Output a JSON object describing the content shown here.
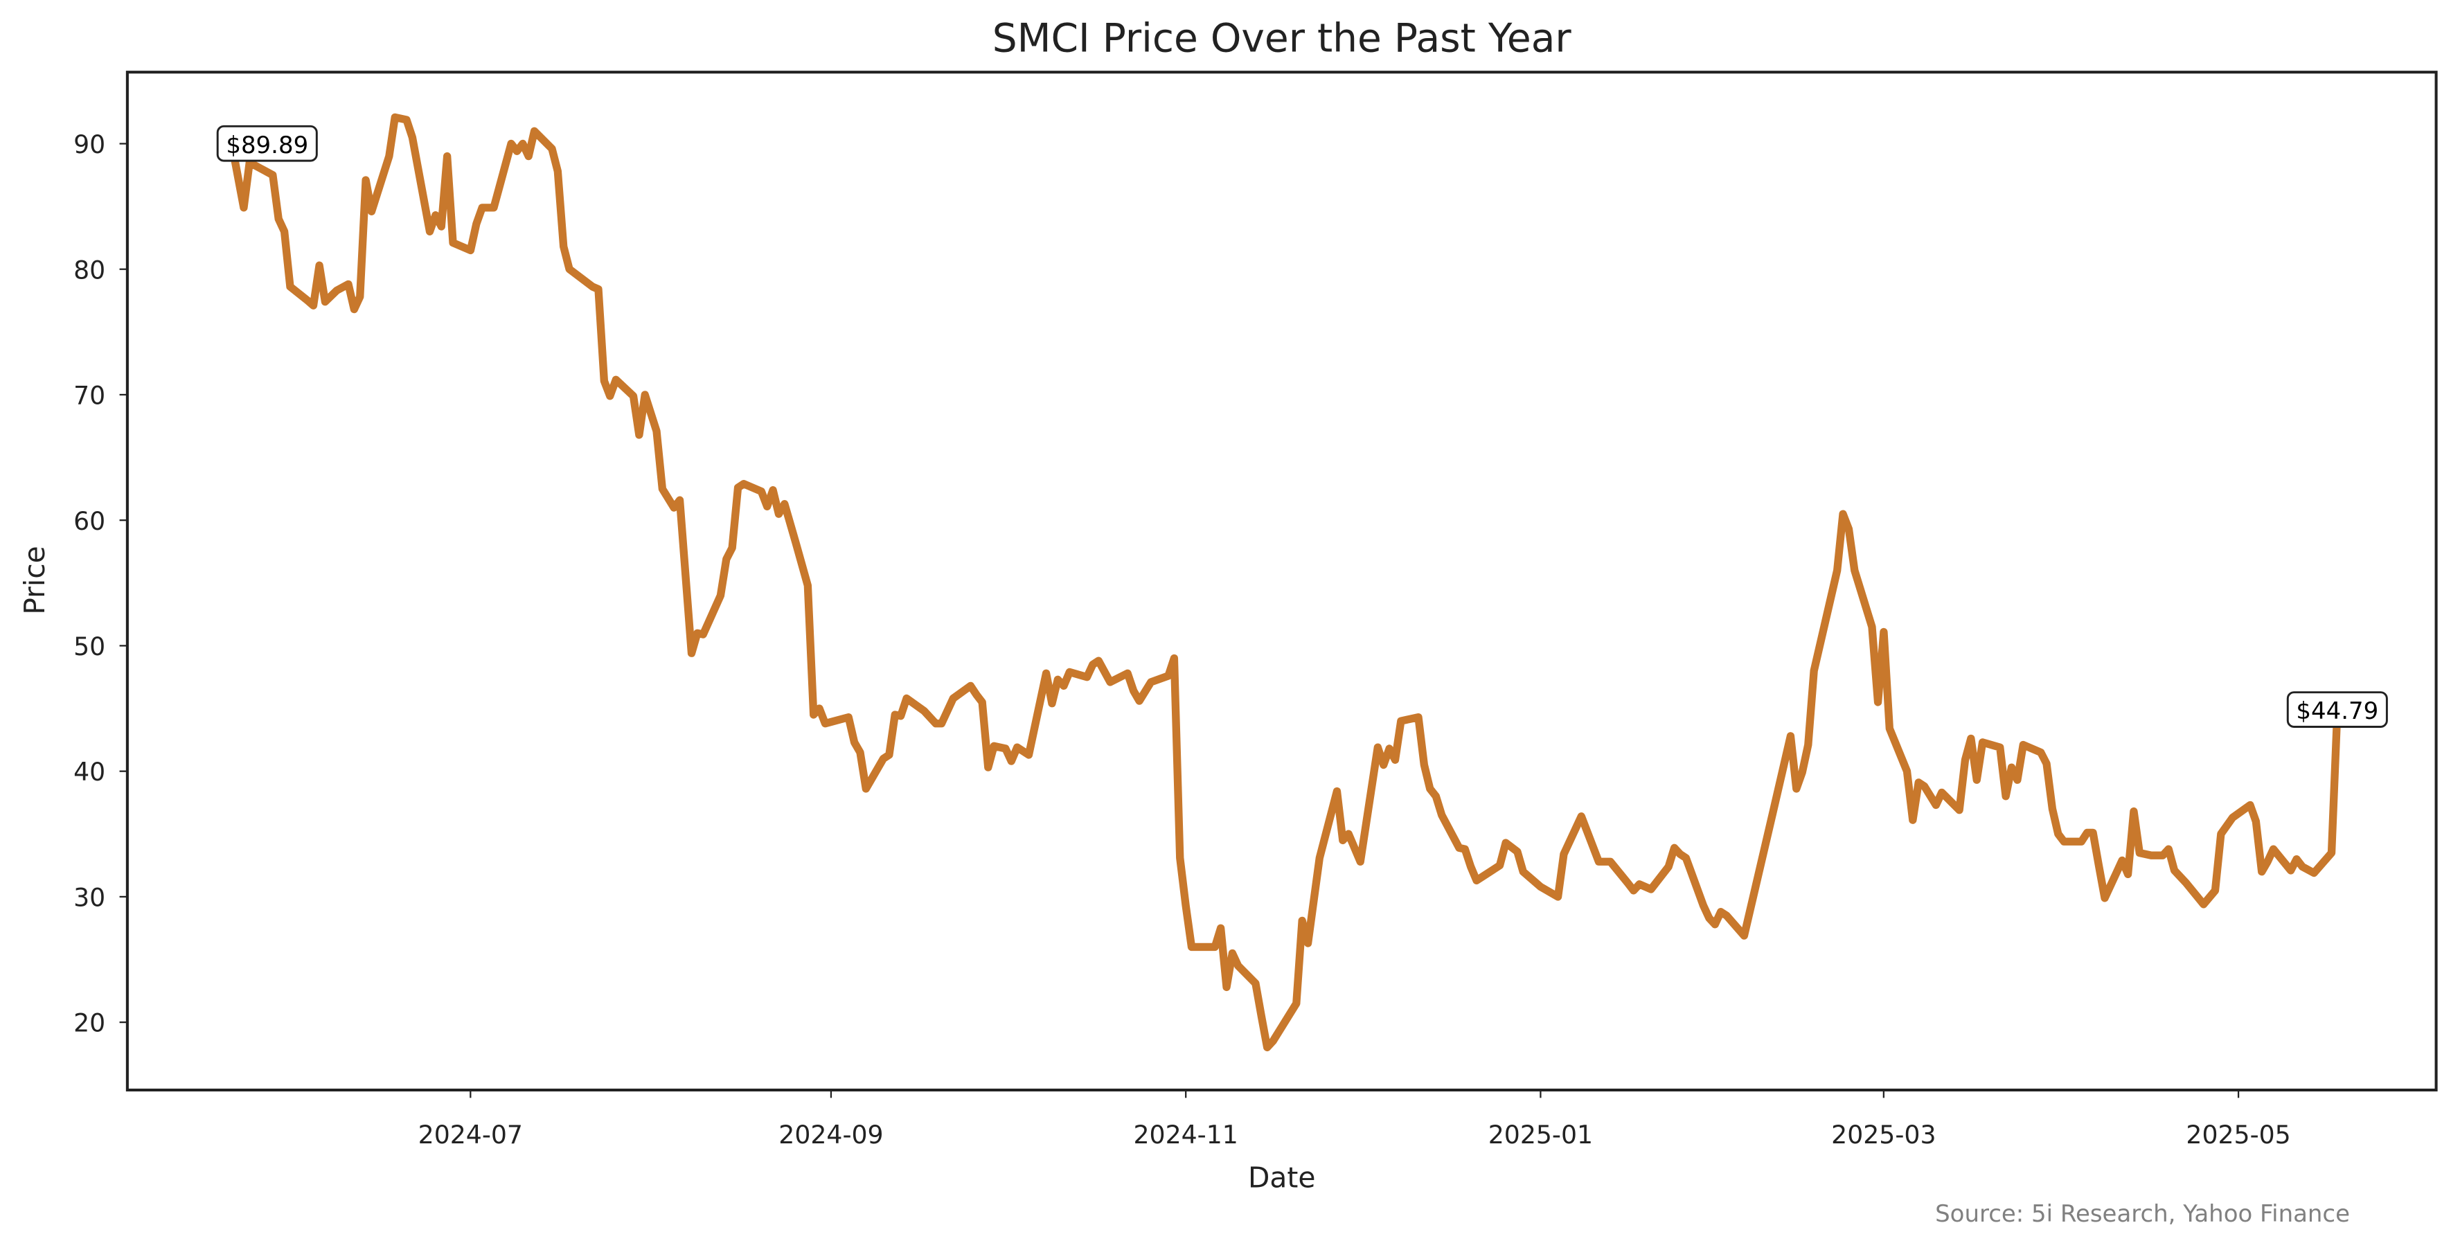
{
  "chart_data": {
    "type": "line",
    "title": "SMCI Price Over the Past Year",
    "xlabel": "Date",
    "ylabel": "Price",
    "source": "Source: 5i Research, Yahoo Finance",
    "line_color": "#C8782C",
    "grid": false,
    "x_start_date": "2024-05-21",
    "xlim": [
      "2024-05-03",
      "2025-06-04"
    ],
    "ylim": [
      14.6,
      95.7
    ],
    "x_ticks": [
      "2024-07",
      "2024-09",
      "2024-11",
      "2025-01",
      "2025-03",
      "2025-05"
    ],
    "y_ticks": [
      20,
      30,
      40,
      50,
      60,
      70,
      80,
      90
    ],
    "annotations": [
      {
        "label": "$89.89",
        "day": 0,
        "value": 89.89
      },
      {
        "label": "$44.79",
        "day": 362,
        "value": 44.79
      }
    ],
    "series": [
      {
        "name": "SMCI",
        "days_since_start": [
          0,
          2,
          3,
          5,
          7,
          8,
          9,
          10,
          13,
          14,
          15,
          16,
          18,
          20,
          21,
          22,
          23,
          24,
          27,
          28,
          30,
          31,
          34,
          35,
          36,
          37,
          38,
          41,
          42,
          43,
          45,
          48,
          49,
          50,
          51,
          52,
          55,
          56,
          57,
          58,
          62,
          63,
          64,
          65,
          66,
          69,
          70,
          71,
          73,
          74,
          76,
          77,
          79,
          80,
          81,
          84,
          85,
          86,
          87,
          88,
          91,
          92,
          93,
          94,
          95,
          97,
          99,
          100,
          101,
          102,
          106,
          107,
          108,
          109,
          112,
          113,
          114,
          115,
          116,
          119,
          121,
          122,
          124,
          127,
          128,
          129,
          130,
          131,
          133,
          134,
          135,
          137,
          140,
          141,
          142,
          143,
          144,
          147,
          148,
          149,
          151,
          154,
          155,
          156,
          158,
          161,
          162,
          163,
          164,
          165,
          169,
          170,
          171,
          172,
          173,
          176,
          177,
          178,
          179,
          183,
          184,
          185,
          187,
          190,
          191,
          192,
          194,
          197,
          198,
          199,
          200,
          201,
          204,
          205,
          206,
          207,
          208,
          211,
          212,
          213,
          214,
          218,
          219,
          221,
          222,
          225,
          228,
          229,
          232,
          235,
          237,
          240,
          241,
          242,
          244,
          247,
          248,
          249,
          250,
          253,
          254,
          255,
          256,
          257,
          260,
          265,
          268,
          269,
          270,
          271,
          272,
          276,
          277,
          278,
          279,
          282,
          283,
          284,
          285,
          288,
          289,
          290,
          291,
          293,
          294,
          297,
          298,
          299,
          300,
          301,
          304,
          305,
          306,
          307,
          308,
          311,
          312,
          313,
          314,
          315,
          318,
          319,
          320,
          321,
          322,
          325,
          326,
          327,
          328,
          330,
          332,
          333,
          334,
          336,
          339,
          341,
          342,
          344,
          347,
          348,
          349,
          350,
          351,
          354,
          355,
          356,
          358,
          361,
          362
        ],
        "values": [
          89.89,
          84.9,
          88.5,
          88,
          87.5,
          84,
          83,
          78.6,
          77.5,
          77.1,
          80.3,
          77.4,
          78.3,
          78.8,
          76.8,
          77.8,
          87.1,
          84.6,
          89,
          92.1,
          91.9,
          90.5,
          83,
          84.3,
          83.4,
          89,
          82.1,
          81.5,
          83.6,
          84.9,
          84.9,
          90,
          89.4,
          90,
          89,
          91,
          89.6,
          87.8,
          81.8,
          80,
          78.6,
          78.4,
          71.1,
          69.9,
          71.2,
          69.9,
          66.8,
          70,
          67.1,
          62.5,
          61,
          61.6,
          49.4,
          51,
          50.9,
          54,
          56.9,
          57.8,
          62.6,
          62.9,
          62.3,
          61.1,
          62.4,
          60.5,
          61.3,
          58.1,
          54.8,
          44.5,
          45,
          43.8,
          44.3,
          42.3,
          41.5,
          38.6,
          41,
          41.3,
          44.5,
          44.4,
          45.8,
          44.8,
          43.8,
          43.8,
          45.8,
          46.8,
          46.1,
          45.5,
          40.3,
          42,
          41.8,
          40.8,
          41.9,
          41.3,
          47.8,
          45.4,
          47.3,
          46.8,
          47.9,
          47.5,
          48.5,
          48.8,
          47.1,
          47.8,
          46.4,
          45.6,
          47.1,
          47.6,
          49,
          33.1,
          29.3,
          26,
          26,
          27.5,
          22.8,
          25.5,
          24.5,
          23.1,
          20.5,
          18,
          18.5,
          21.5,
          28.1,
          26.3,
          33.1,
          38.4,
          34.5,
          35,
          32.8,
          41.9,
          40.5,
          41.8,
          40.9,
          44,
          44.3,
          40.5,
          38.6,
          38,
          36.5,
          33.9,
          33.8,
          32.4,
          31.3,
          32.5,
          34.3,
          33.6,
          32,
          30.8,
          30,
          33.4,
          36.4,
          32.8,
          32.8,
          31.1,
          30.5,
          31,
          30.6,
          32.4,
          33.9,
          33.4,
          33.1,
          29.3,
          28.3,
          27.8,
          28.8,
          28.5,
          26.9,
          36.8,
          42.8,
          38.6,
          39.9,
          42.1,
          48,
          56,
          60.5,
          59.3,
          56,
          51.5,
          45.5,
          51.1,
          43.4,
          40,
          36.1,
          39.1,
          38.8,
          37.3,
          38.3,
          36.9,
          40.9,
          42.6,
          39.3,
          42.3,
          41.9,
          38,
          40.3,
          39.3,
          42.1,
          41.5,
          40.6,
          37,
          35,
          34.4,
          34.4,
          35.1,
          35.1,
          32.5,
          29.9,
          32.9,
          31.8,
          36.8,
          33.5,
          33.3,
          33.3,
          33.8,
          32.1,
          31.1,
          29.4,
          30.5,
          35,
          36.3,
          37.3,
          36,
          32,
          32.8,
          33.8,
          32.1,
          33,
          32.4,
          31.9,
          33.5,
          44.79
        ]
      }
    ]
  }
}
